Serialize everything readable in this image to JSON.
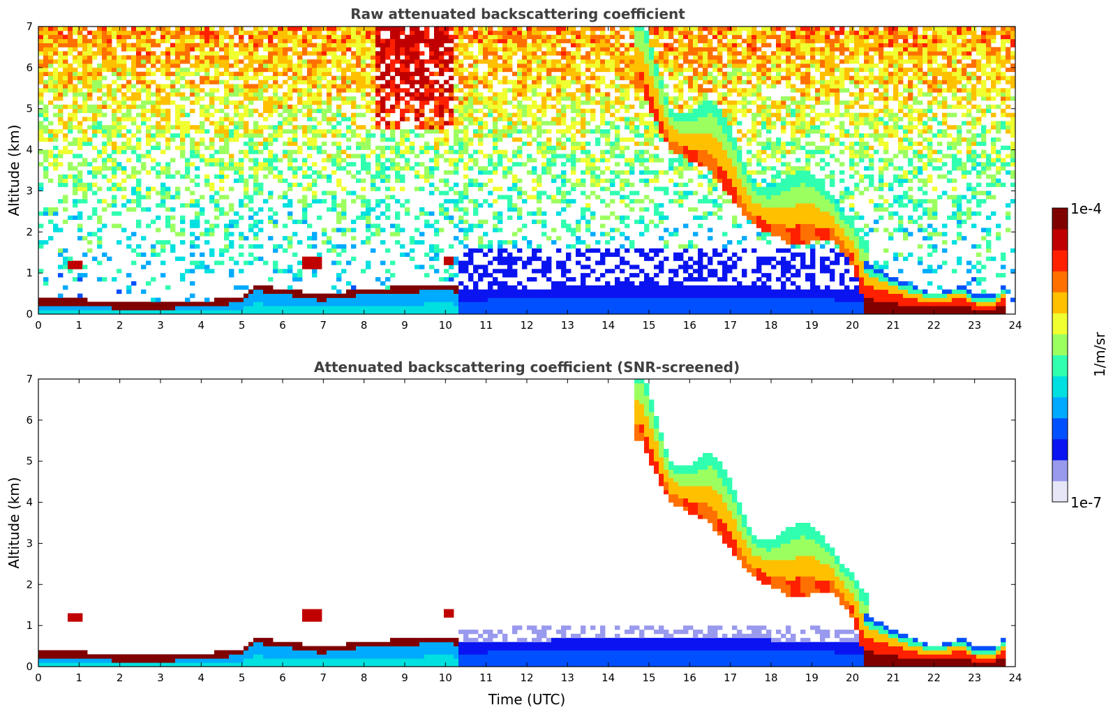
{
  "chart_data": [
    {
      "type": "heatmap",
      "title": "Raw attenuated backscattering coefficient",
      "xlabel": "",
      "ylabel": "Altitude (km)",
      "xlim": [
        0,
        24
      ],
      "ylim": [
        0,
        7
      ],
      "xticks": [
        "0",
        "1",
        "2",
        "3",
        "4",
        "5",
        "6",
        "7",
        "8",
        "9",
        "10",
        "11",
        "12",
        "13",
        "14",
        "15",
        "16",
        "17",
        "18",
        "19",
        "20",
        "21",
        "22",
        "23",
        "24"
      ],
      "yticks": [
        "0",
        "1",
        "2",
        "3",
        "4",
        "5",
        "6",
        "7"
      ],
      "features": {
        "boundary_layer_top_km": [
          [
            0,
            0.3
          ],
          [
            1,
            0.3
          ],
          [
            2,
            0.2
          ],
          [
            3,
            0.2
          ],
          [
            4,
            0.25
          ],
          [
            5,
            0.35
          ],
          [
            5.3,
            0.65
          ],
          [
            6,
            0.55
          ],
          [
            7,
            0.4
          ],
          [
            8,
            0.55
          ],
          [
            9,
            0.6
          ],
          [
            10,
            0.65
          ],
          [
            10.3,
            0.6
          ]
        ],
        "low_clouds": [
          {
            "x": [
              0.7,
              1.1
            ],
            "alt_km": 1.2
          },
          {
            "x": [
              6.5,
              6.9
            ],
            "alt_km": 1.25
          },
          {
            "x": [
              10.0,
              10.2
            ],
            "alt_km": 1.3
          }
        ],
        "cirrus_base_km": [
          [
            14.8,
            5.5
          ],
          [
            15.5,
            4.0
          ],
          [
            16.5,
            3.5
          ],
          [
            17.5,
            2.2
          ],
          [
            18.5,
            1.7
          ],
          [
            19.5,
            1.8
          ],
          [
            20.0,
            1.2
          ],
          [
            20.3,
            0.3
          ]
        ],
        "evening_layer_top_km": [
          [
            20.3,
            1.3
          ],
          [
            21,
            0.9
          ],
          [
            21.5,
            0.7
          ],
          [
            22,
            0.5
          ],
          [
            22.7,
            0.7
          ],
          [
            23,
            0.45
          ],
          [
            23.5,
            0.45
          ],
          [
            23.8,
            0.8
          ]
        ]
      }
    },
    {
      "type": "heatmap",
      "title": "Attenuated backscattering coefficient (SNR-screened)",
      "xlabel": "Time (UTC)",
      "ylabel": "Altitude (km)",
      "xlim": [
        0,
        24
      ],
      "ylim": [
        0,
        7
      ],
      "xticks": [
        "0",
        "1",
        "2",
        "3",
        "4",
        "5",
        "6",
        "7",
        "8",
        "9",
        "10",
        "11",
        "12",
        "13",
        "14",
        "15",
        "16",
        "17",
        "18",
        "19",
        "20",
        "21",
        "22",
        "23",
        "24"
      ],
      "yticks": [
        "0",
        "1",
        "2",
        "3",
        "4",
        "5",
        "6",
        "7"
      ]
    }
  ],
  "colorbar": {
    "label": "1/m/sr",
    "max_label": "1e-4",
    "min_label": "1e-7",
    "range": [
      1e-07,
      0.0001
    ],
    "colormap": [
      "#e6e6f7",
      "#9999ee",
      "#0a14f0",
      "#0050ff",
      "#00aaff",
      "#00e0e0",
      "#30ffb0",
      "#9cff60",
      "#f0ff30",
      "#ffc000",
      "#ff7000",
      "#ff2000",
      "#c00000",
      "#800000"
    ]
  }
}
